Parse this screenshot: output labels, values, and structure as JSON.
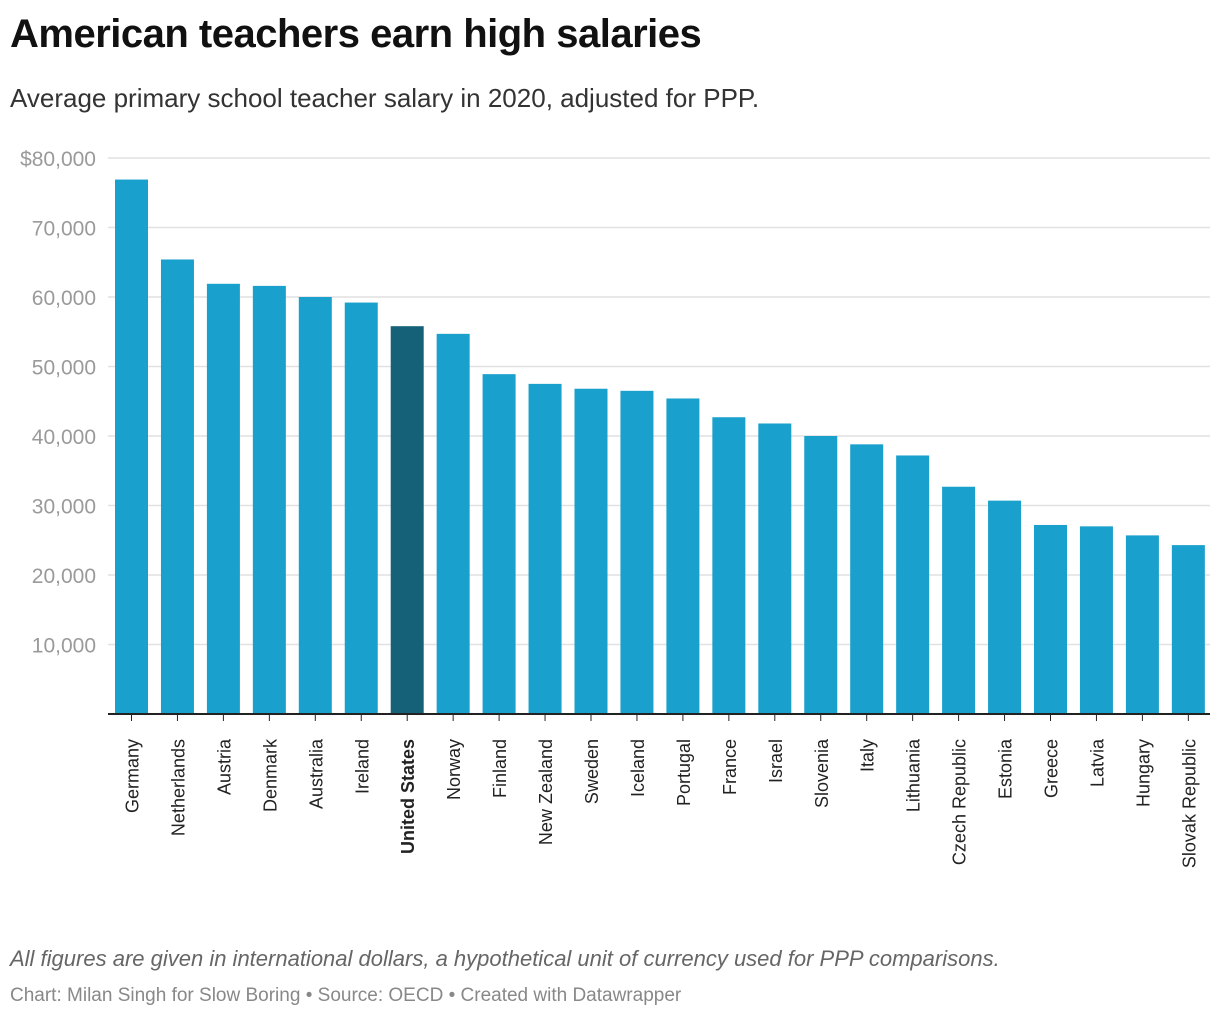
{
  "header": {
    "title": "American teachers earn high salaries",
    "subtitle": "Average primary school teacher salary in 2020, adjusted for PPP."
  },
  "footer": {
    "note": "All figures are given in international dollars, a hypothetical unit of currency used for PPP comparisons.",
    "credit_chart": "Chart: Milan Singh for Slow Boring",
    "credit_source": "Source: OECD",
    "credit_tool": "Created with Datawrapper",
    "separator": " • "
  },
  "colors": {
    "bar": "#1aa0cc",
    "highlight": "#156278",
    "grid": "#e1e1e1",
    "axis": "#222222",
    "tick_label": "#9a9a9a",
    "category_label": "#222222"
  },
  "chart_data": {
    "type": "bar",
    "title": "American teachers earn high salaries",
    "subtitle": "Average primary school teacher salary in 2020, adjusted for PPP.",
    "xlabel": "",
    "ylabel": "",
    "ylim": [
      0,
      80000
    ],
    "yticks": [
      10000,
      20000,
      30000,
      40000,
      50000,
      60000,
      70000,
      80000
    ],
    "ytick_labels": [
      "10,000",
      "20,000",
      "30,000",
      "40,000",
      "50,000",
      "60,000",
      "70,000",
      "$80,000"
    ],
    "grid": true,
    "highlight_category": "United States",
    "categories": [
      "Germany",
      "Netherlands",
      "Austria",
      "Denmark",
      "Australia",
      "Ireland",
      "United States",
      "Norway",
      "Finland",
      "New Zealand",
      "Sweden",
      "Iceland",
      "Portugal",
      "France",
      "Israel",
      "Slovenia",
      "Italy",
      "Lithuania",
      "Czech Republic",
      "Estonia",
      "Greece",
      "Latvia",
      "Hungary",
      "Slovak Republic"
    ],
    "values": [
      76900,
      65400,
      61900,
      61600,
      60000,
      59200,
      55800,
      54700,
      48900,
      47500,
      46800,
      46500,
      45400,
      42700,
      41800,
      40000,
      38800,
      37200,
      32700,
      30700,
      27200,
      27000,
      25700,
      24300
    ]
  }
}
